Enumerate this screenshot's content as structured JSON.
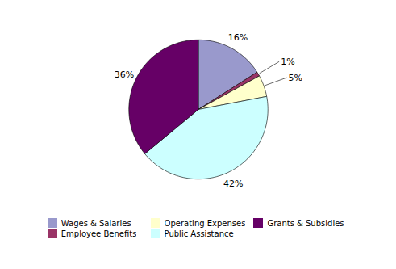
{
  "chart_data": {
    "type": "pie",
    "categories": [
      "Wages & Salaries",
      "Employee Benefits",
      "Operating Expenses",
      "Public Assistance",
      "Grants & Subsidies"
    ],
    "values": [
      16,
      1,
      5,
      42,
      36
    ],
    "value_labels": [
      "16%",
      "1%",
      "5%",
      "42%",
      "36%"
    ],
    "colors": [
      "#9999CC",
      "#993366",
      "#FFFFCC",
      "#CCFFFF",
      "#660066"
    ],
    "data_labels": true,
    "legend": "bottom"
  }
}
